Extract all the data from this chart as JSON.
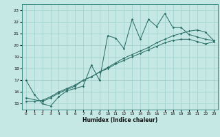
{
  "xlabel": "Humidex (Indice chaleur)",
  "ylabel": "",
  "bg_color": "#c5e8e5",
  "line_color": "#2d7068",
  "grid_color": "#9ecfcc",
  "xlim": [
    -0.5,
    23.5
  ],
  "ylim": [
    14.5,
    23.5
  ],
  "yticks": [
    15,
    16,
    17,
    18,
    19,
    20,
    21,
    22,
    23
  ],
  "xticks": [
    0,
    1,
    2,
    3,
    4,
    5,
    6,
    7,
    8,
    9,
    10,
    11,
    12,
    13,
    14,
    15,
    16,
    17,
    18,
    19,
    20,
    21,
    22,
    23
  ],
  "line1_x": [
    0,
    1,
    2,
    3,
    4,
    5,
    6,
    7,
    8,
    9,
    10,
    11,
    12,
    13,
    14,
    15,
    16,
    17,
    18,
    19,
    20,
    21,
    22,
    23
  ],
  "line1_y": [
    17.0,
    15.8,
    15.0,
    14.8,
    15.6,
    16.1,
    16.3,
    16.5,
    18.3,
    17.0,
    20.8,
    20.6,
    19.7,
    22.2,
    20.5,
    22.2,
    21.6,
    22.7,
    21.5,
    21.5,
    20.9,
    20.7,
    20.5,
    20.4
  ],
  "line2_x": [
    0,
    2,
    3,
    4,
    5,
    6,
    7,
    8,
    9,
    10,
    11,
    12,
    13,
    14,
    15,
    16,
    17,
    18,
    19,
    20,
    21,
    22,
    23
  ],
  "line2_y": [
    15.5,
    15.2,
    15.5,
    15.9,
    16.2,
    16.5,
    17.0,
    17.3,
    17.7,
    18.1,
    18.5,
    18.9,
    19.2,
    19.5,
    19.8,
    20.2,
    20.5,
    20.8,
    21.0,
    21.2,
    21.3,
    21.1,
    20.4
  ],
  "line3_x": [
    0,
    1,
    2,
    3,
    4,
    5,
    6,
    7,
    8,
    9,
    10,
    11,
    12,
    13,
    14,
    15,
    16,
    17,
    18,
    19,
    20,
    21,
    22,
    23
  ],
  "line3_y": [
    15.2,
    15.2,
    15.3,
    15.6,
    16.0,
    16.3,
    16.6,
    17.0,
    17.3,
    17.7,
    18.0,
    18.4,
    18.7,
    19.0,
    19.3,
    19.6,
    19.9,
    20.2,
    20.4,
    20.5,
    20.5,
    20.3,
    20.1,
    20.3
  ]
}
